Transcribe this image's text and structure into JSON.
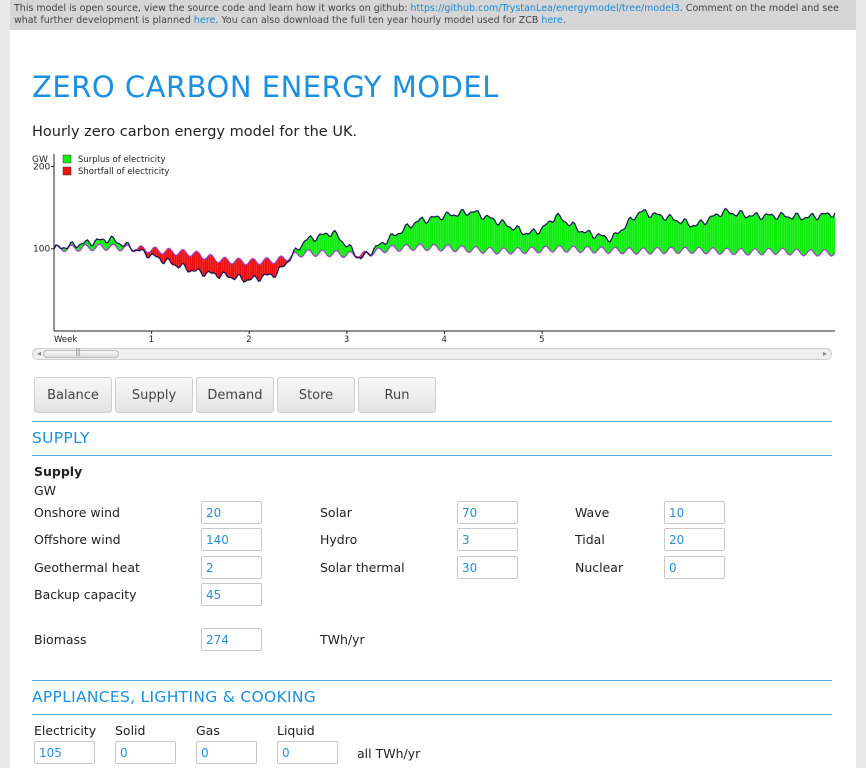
{
  "notice": {
    "text_1": "This model is open source, view the source code and learn how it works on github:",
    "link_1": "https://github.com/TrystanLea/energymodel/tree/model3",
    "text_2": ". Comment on the model and see what further development is planned",
    "link_2": "here",
    "text_3": ". You can also download the full ten year hourly model used for ZCB",
    "link_3": "here",
    "text_4": "."
  },
  "header": {
    "title": "ZERO CARBON ENERGY MODEL",
    "subtitle": "Hourly zero carbon energy model for the UK."
  },
  "chart_data": {
    "type": "area",
    "title": "",
    "ylabel": "GW",
    "xlabel": "",
    "yticks": [
      "200",
      "100"
    ],
    "xticks": [
      "Week",
      "1",
      "2",
      "3",
      "4",
      "5"
    ],
    "ylim": [
      0,
      220
    ],
    "legend_position": "top-left",
    "colors": {
      "surplus": "#10ee10",
      "shortfall": "#ee1010",
      "supply_line": "#141450",
      "demand_line": "#a040c8"
    },
    "series": [
      {
        "name": "Surplus of electricity",
        "color": "#10ee10"
      },
      {
        "name": "Shortfall of electricity",
        "color": "#ee1010"
      }
    ],
    "x_days": [
      0,
      2,
      4,
      6,
      8,
      10,
      11,
      12,
      14,
      16,
      18,
      20,
      22,
      24,
      26,
      28,
      30,
      32,
      34,
      35,
      36,
      38,
      40,
      42,
      44,
      46,
      48,
      50,
      52,
      54,
      56
    ],
    "demand_gw": [
      100,
      101,
      102,
      100,
      97,
      94,
      90,
      86,
      84,
      86,
      95,
      94,
      92,
      100,
      102,
      101,
      99,
      97,
      98,
      99,
      100,
      99,
      98,
      97,
      98,
      98,
      97,
      96,
      97,
      95,
      95
    ],
    "supply_gw": [
      100,
      106,
      112,
      98,
      85,
      73,
      70,
      68,
      62,
      70,
      110,
      120,
      88,
      112,
      133,
      140,
      145,
      132,
      118,
      124,
      140,
      120,
      112,
      145,
      138,
      128,
      145,
      140,
      140,
      138,
      143
    ]
  },
  "scrollbar": {
    "grip": "|||",
    "left_arrow": "◂",
    "right_arrow": "▸"
  },
  "tabs": [
    "Balance",
    "Supply",
    "Demand",
    "Store",
    "Run"
  ],
  "supply": {
    "section_title": "SUPPLY",
    "heading": "Supply",
    "unit": "GW",
    "fields": [
      {
        "label": "Onshore wind",
        "value": "20"
      },
      {
        "label": "Offshore wind",
        "value": "140"
      },
      {
        "label": "Geothermal heat",
        "value": "2"
      },
      {
        "label": "Backup capacity",
        "value": "45"
      },
      {
        "label": "Solar",
        "value": "70"
      },
      {
        "label": "Hydro",
        "value": "3"
      },
      {
        "label": "Solar thermal",
        "value": "30"
      },
      {
        "label": "Wave",
        "value": "10"
      },
      {
        "label": "Tidal",
        "value": "20"
      },
      {
        "label": "Nuclear",
        "value": "0"
      }
    ],
    "biomass": {
      "label": "Biomass",
      "value": "274",
      "unit": "TWh/yr"
    }
  },
  "appliances": {
    "section_title": "APPLIANCES, LIGHTING & COOKING",
    "columns": [
      {
        "label": "Electricity",
        "value": "105"
      },
      {
        "label": "Solid",
        "value": "0"
      },
      {
        "label": "Gas",
        "value": "0"
      },
      {
        "label": "Liquid",
        "value": "0"
      }
    ],
    "unit": "all TWh/yr"
  }
}
